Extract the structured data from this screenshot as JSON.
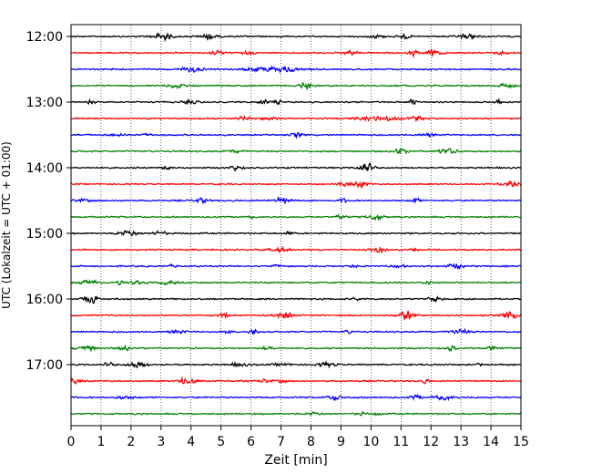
{
  "chart_data": {
    "type": "line",
    "xlabel": "Zeit  [min]",
    "ylabel": "UTC (Lokalzeit = UTC + 01:00)",
    "xlim": [
      0,
      15
    ],
    "x_ticks": [
      "0",
      "1",
      "2",
      "3",
      "4",
      "5",
      "6",
      "7",
      "8",
      "9",
      "10",
      "11",
      "12",
      "13",
      "14",
      "15"
    ],
    "y_tick_labels": [
      "12:00",
      "13:00",
      "14:00",
      "15:00",
      "16:00",
      "17:00"
    ],
    "grid": "vertical dotted at each minute",
    "trace_interval_min": 15,
    "trace_start": "12:00",
    "trace_count": 24,
    "trace_colors": [
      "#000000",
      "#ff0000",
      "#0000ff",
      "#008000"
    ],
    "seismic_noise_amplitude": "low, with occasional small bursts"
  }
}
